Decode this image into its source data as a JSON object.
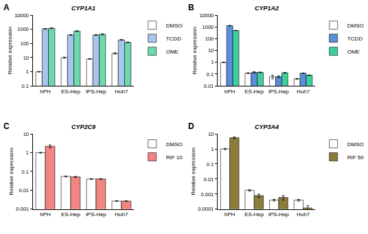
{
  "chart_data": [
    {
      "type": "bar",
      "title": "CYP1A1",
      "y_label": "Relative expression",
      "log": "y",
      "grid": false,
      "legend": "right",
      "annotations": [
        {
          "text": "A"
        }
      ],
      "categories": [
        "hPH",
        "ES-Hep",
        "iPS-Hep",
        "Huh7"
      ],
      "ylim": [
        0.1,
        10000
      ],
      "yticks": [
        0.1,
        1,
        10,
        100,
        1000,
        10000
      ],
      "series": [
        {
          "name": "DMSO",
          "color": "#ffffff",
          "values": [
            1,
            10,
            8,
            20
          ],
          "errors": [
            0.05,
            0.8,
            0.5,
            2
          ]
        },
        {
          "name": "TCDD",
          "color": "#a9c5ec",
          "values": [
            1100,
            400,
            400,
            180
          ],
          "errors": [
            50,
            20,
            20,
            10
          ]
        },
        {
          "name": "OME",
          "color": "#6fd9ae",
          "values": [
            1200,
            750,
            450,
            120
          ],
          "errors": [
            80,
            50,
            30,
            5
          ]
        }
      ]
    },
    {
      "type": "bar",
      "title": "CYP1A2",
      "y_label": "Relative expression",
      "log": "y",
      "grid": false,
      "legend": "right",
      "annotations": [
        {
          "text": "B"
        }
      ],
      "categories": [
        "hPH",
        "ES-Hep",
        "iPS-Hep",
        "Huh7"
      ],
      "ylim": [
        0.01,
        10000
      ],
      "yticks": [
        0.01,
        0.1,
        1,
        10,
        100,
        1000,
        10000
      ],
      "series": [
        {
          "name": "DMSO",
          "color": "#ffffff",
          "values": [
            1,
            0.12,
            0.06,
            0.04
          ],
          "errors": [
            0.05,
            0.01,
            0.02,
            0.003
          ]
        },
        {
          "name": "TCDD",
          "color": "#5b8fdb",
          "values": [
            1300,
            0.14,
            0.06,
            0.12
          ],
          "errors": [
            50,
            0.02,
            0.01,
            0.005
          ]
        },
        {
          "name": "OME",
          "color": "#3fcf9f",
          "values": [
            500,
            0.14,
            0.13,
            0.08
          ],
          "errors": [
            20,
            0.01,
            0.01,
            0.005
          ]
        }
      ]
    },
    {
      "type": "bar",
      "title": "CYP2C9",
      "y_label": "Relative expression",
      "log": "y",
      "grid": false,
      "legend": "right",
      "annotations": [
        {
          "text": "C"
        }
      ],
      "categories": [
        "hPH",
        "ES-Hep",
        "iPS-Hep",
        "Huh7"
      ],
      "ylim": [
        0.001,
        10
      ],
      "yticks": [
        0.001,
        0.01,
        0.1,
        1,
        10
      ],
      "series": [
        {
          "name": "DMSO",
          "color": "#ffffff",
          "values": [
            1,
            0.055,
            0.04,
            0.0027
          ],
          "errors": [
            0.05,
            0.003,
            0.002,
            0.0001
          ]
        },
        {
          "name": "RIF 10",
          "color": "#f28482",
          "values": [
            2.2,
            0.052,
            0.04,
            0.0027
          ],
          "errors": [
            0.4,
            0.003,
            0.002,
            0.0001
          ]
        }
      ]
    },
    {
      "type": "bar",
      "title": "CYP3A4",
      "y_label": "Relative expression",
      "log": "y",
      "grid": false,
      "legend": "right",
      "annotations": [
        {
          "text": "D"
        }
      ],
      "categories": [
        "hPH",
        "ES-Hep",
        "iPS-Hep",
        "Huh7"
      ],
      "ylim": [
        0.0001,
        10
      ],
      "yticks": [
        0.0001,
        0.001,
        0.01,
        0.1,
        1,
        10
      ],
      "series": [
        {
          "name": "DMSO",
          "color": "#ffffff",
          "values": [
            1,
            0.0018,
            0.0004,
            0.0004
          ],
          "errors": [
            0.1,
            0.0002,
            5e-05,
            5e-05
          ]
        },
        {
          "name": "RIF 50",
          "color": "#8c7d3c",
          "values": [
            5.5,
            0.0008,
            0.0006,
            0.00012
          ],
          "errors": [
            0.7,
            0.0002,
            0.0002,
            5e-05
          ]
        }
      ]
    }
  ]
}
